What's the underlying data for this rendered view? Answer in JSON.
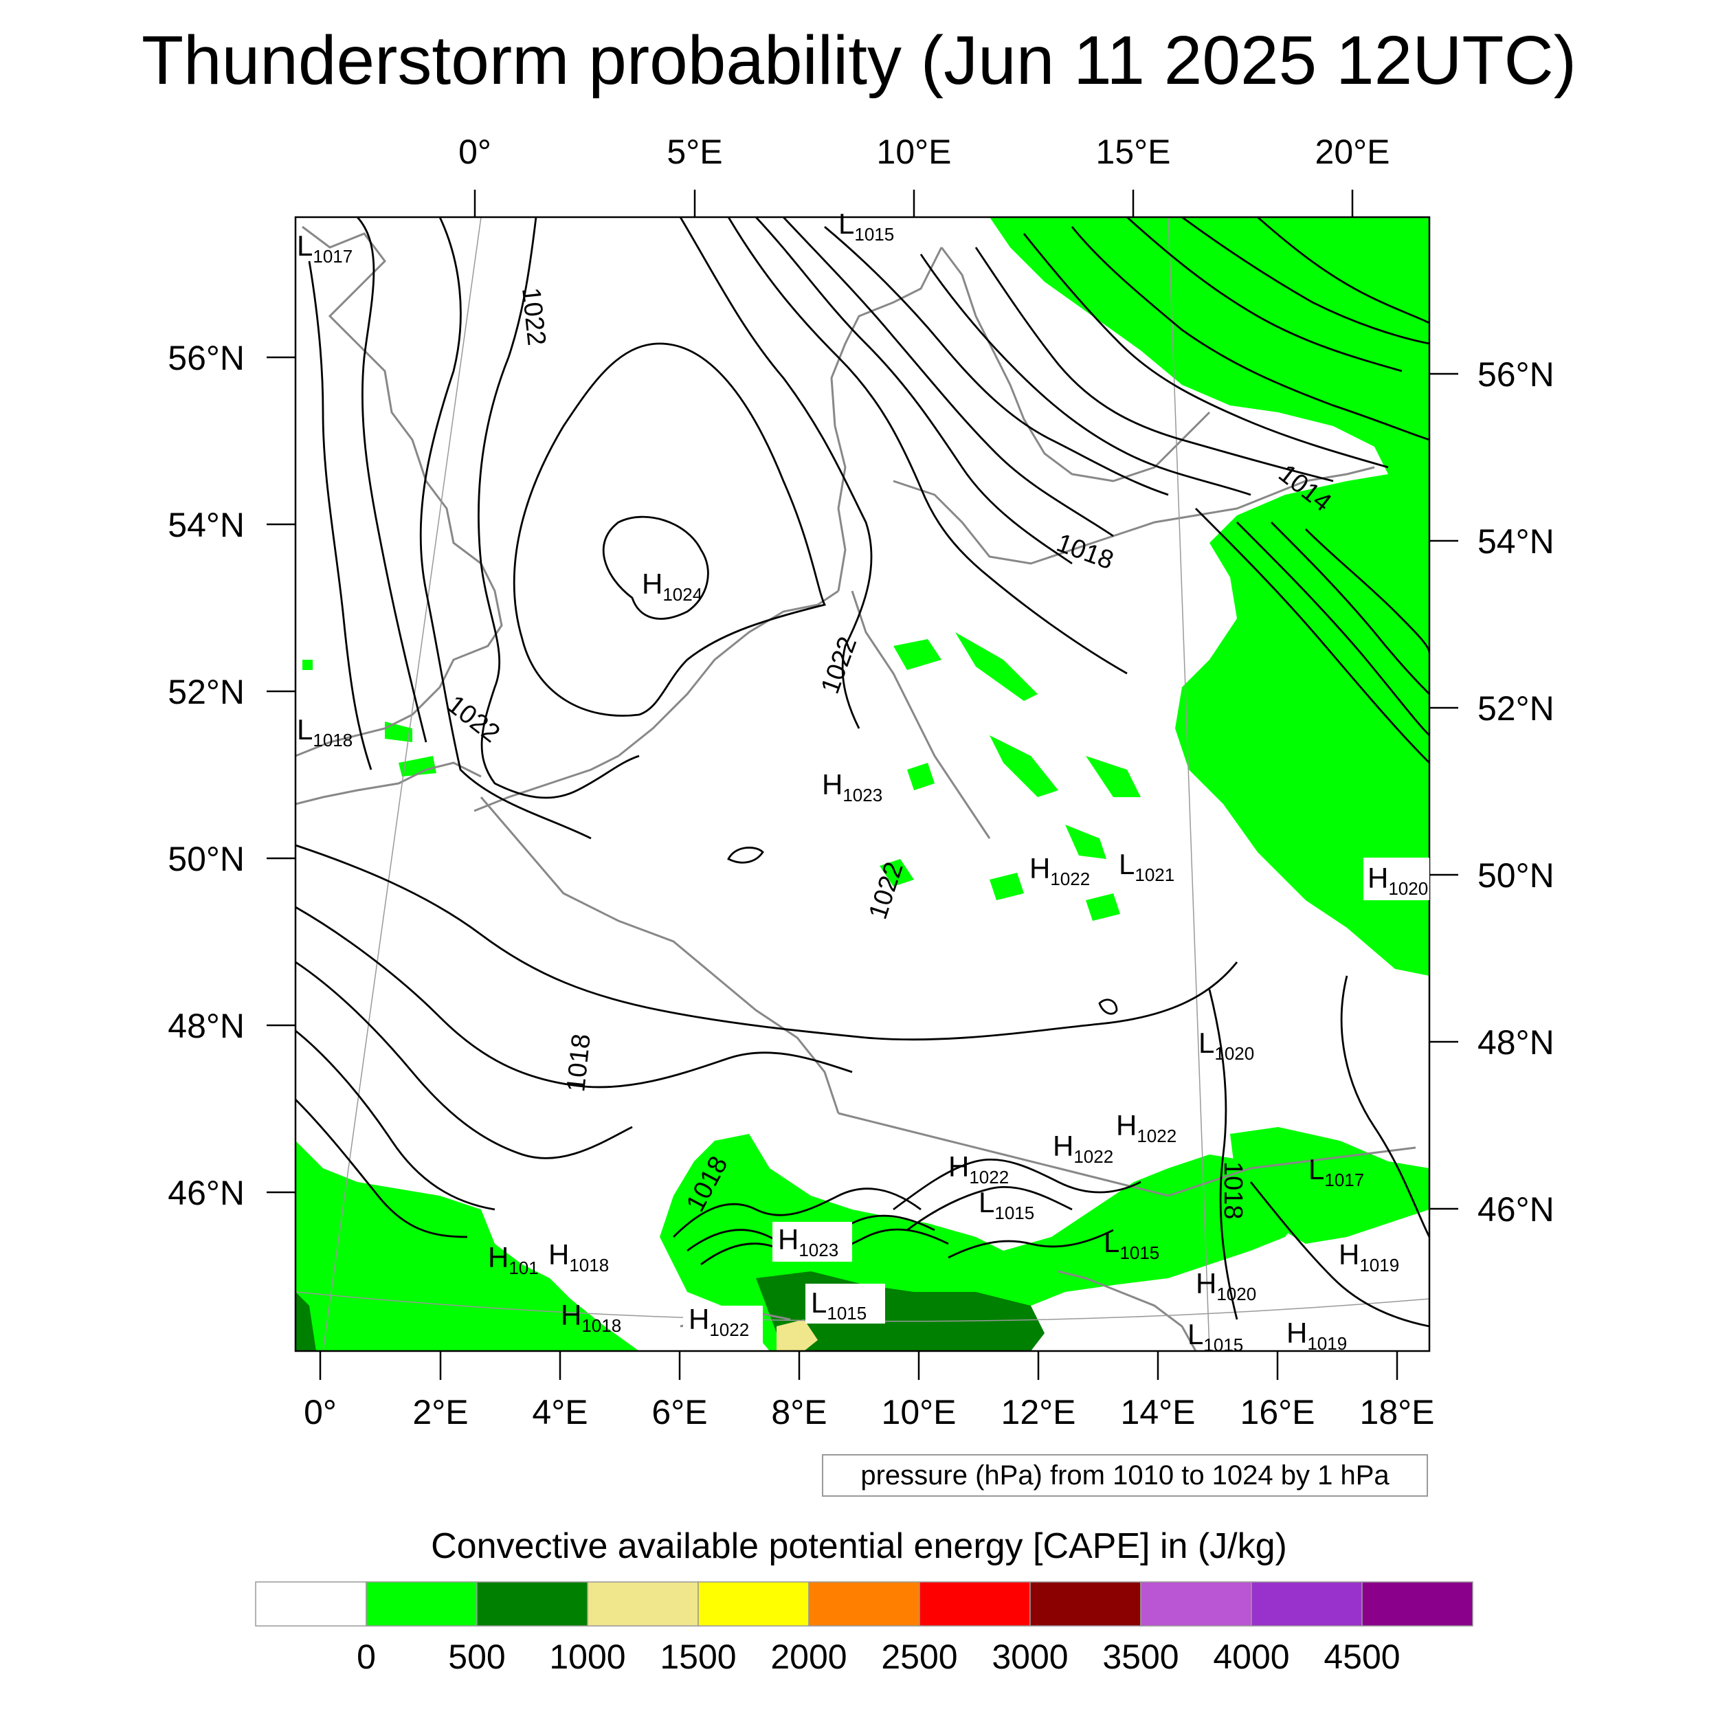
{
  "title": "Thunderstorm probability (Jun 11 2025 12UTC)",
  "top_lon_labels": [
    "0°",
    "5°E",
    "10°E",
    "15°E",
    "20°E"
  ],
  "bottom_lon_labels": [
    "0°",
    "2°E",
    "4°E",
    "6°E",
    "8°E",
    "10°E",
    "12°E",
    "14°E",
    "16°E",
    "18°E"
  ],
  "left_lat_labels": [
    "56°N",
    "54°N",
    "52°N",
    "50°N",
    "48°N",
    "46°N"
  ],
  "right_lat_labels": [
    "56°N",
    "54°N",
    "52°N",
    "50°N",
    "48°N",
    "46°N"
  ],
  "contour_note": "pressure (hPa) from 1010 to 1024 by 1 hPa",
  "colorbar": {
    "title": "Convective available potential energy [CAPE] in (J/kg)",
    "labels": [
      "0",
      "500",
      "1000",
      "1500",
      "2000",
      "2500",
      "3000",
      "3500",
      "4000",
      "4500"
    ],
    "colors": [
      "#ffffff",
      "#00ff00",
      "#008000",
      "#f0e68c",
      "#ffff00",
      "#ff8000",
      "#ff0000",
      "#8b0000",
      "#ba55d3",
      "#9932cc",
      "#8b008b"
    ]
  },
  "isobar_labels": [
    "1022",
    "1022",
    "1022",
    "1022",
    "1018",
    "1014",
    "1018",
    "1018",
    "1018"
  ],
  "pressure_centers": [
    {
      "type": "L",
      "value": "1017"
    },
    {
      "type": "L",
      "value": "1015"
    },
    {
      "type": "H",
      "value": "1024"
    },
    {
      "type": "L",
      "value": "1018"
    },
    {
      "type": "H",
      "value": "1023"
    },
    {
      "type": "H",
      "value": "1022"
    },
    {
      "type": "L",
      "value": "1021"
    },
    {
      "type": "H",
      "value": "1020"
    },
    {
      "type": "L",
      "value": "1020"
    },
    {
      "type": "H",
      "value": "1022"
    },
    {
      "type": "H",
      "value": "1022"
    },
    {
      "type": "H",
      "value": "1022"
    },
    {
      "type": "L",
      "value": "1015"
    },
    {
      "type": "L",
      "value": "1017"
    },
    {
      "type": "H",
      "value": "1023"
    },
    {
      "type": "L",
      "value": "1015"
    },
    {
      "type": "H",
      "value": "101"
    },
    {
      "type": "H",
      "value": "1018"
    },
    {
      "type": "H",
      "value": "1019"
    },
    {
      "type": "H",
      "value": "1020"
    },
    {
      "type": "L",
      "value": "1015"
    },
    {
      "type": "H",
      "value": "1018"
    },
    {
      "type": "H",
      "value": "1022"
    },
    {
      "type": "H",
      "value": "1019"
    },
    {
      "type": "L",
      "value": "1015"
    }
  ]
}
